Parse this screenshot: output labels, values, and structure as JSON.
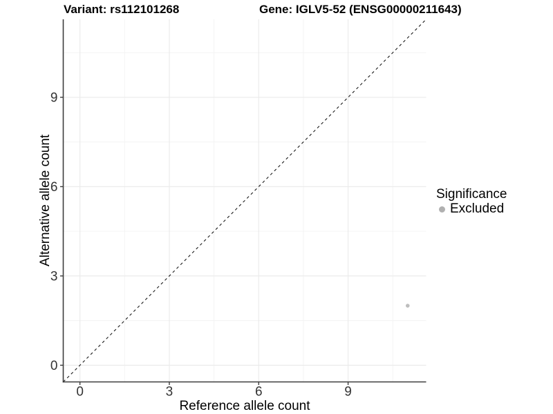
{
  "chart_data": {
    "type": "scatter",
    "title_parts": [
      "Variant: rs112101268",
      "Gene: IGLV5-52 (ENSG00000211643)"
    ],
    "xlabel": "Reference allele count",
    "ylabel": "Alternative allele count",
    "xlim": [
      -0.56,
      11.62
    ],
    "ylim": [
      -0.56,
      11.62
    ],
    "x_ticks": [
      0,
      3,
      6,
      9
    ],
    "y_ticks": [
      0,
      3,
      6,
      9
    ],
    "x_minor_gridlines": [
      1.5,
      4.5,
      7.5,
      10.5
    ],
    "y_minor_gridlines": [
      1.5,
      4.5,
      7.5,
      10.5
    ],
    "grid": true,
    "identity_line": {
      "slope": 1,
      "intercept": 0,
      "linetype": "dashed",
      "color": "#1a1a1a"
    },
    "series": [
      {
        "name": "Excluded",
        "color": "#bebebe",
        "points": [
          {
            "x": 11,
            "y": 2
          }
        ]
      }
    ],
    "legend": {
      "title": "Significance",
      "position": "right",
      "items": [
        {
          "label": "Excluded",
          "color": "#b0b0b0"
        }
      ]
    }
  },
  "style": {
    "background": "#ffffff",
    "grid_major_color": "#ebebeb",
    "grid_minor_color": "#f3f3f3",
    "axis_line_color": "#3c3c3c",
    "tick_label_color": "#333333",
    "point_color": "#bebebe"
  }
}
